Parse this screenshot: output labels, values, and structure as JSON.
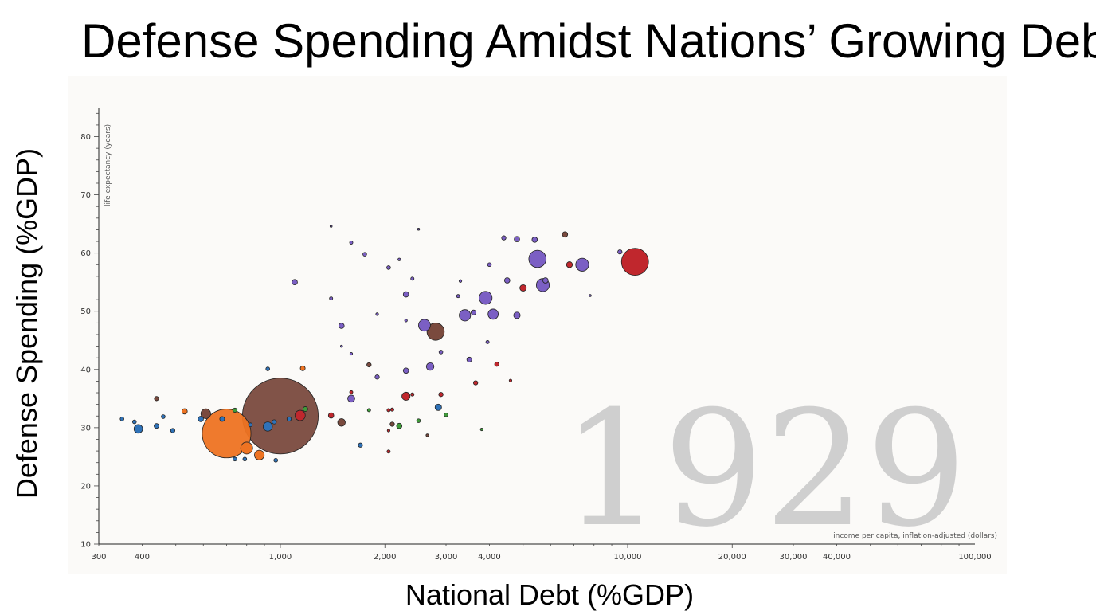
{
  "slide": {
    "title": "Defense Spending Amidst Nations’ Growing Debt",
    "ylabel": "Defense Spending (%GDP)",
    "xlabel": "National Debt (%GDP)"
  },
  "chart_data": {
    "type": "scatter",
    "year_label": "1929",
    "inner_ylabel": "life expectancy (years)",
    "inner_xlabel": "income per capita, inflation-adjusted (dollars)",
    "x_scale": "log",
    "xlim": [
      300,
      100000
    ],
    "ylim": [
      10,
      85
    ],
    "x_ticks": [
      {
        "value": 300,
        "label": "300"
      },
      {
        "value": 400,
        "label": "400"
      },
      {
        "value": 1000,
        "label": "1,000"
      },
      {
        "value": 2000,
        "label": "2,000"
      },
      {
        "value": 3000,
        "label": "3,000"
      },
      {
        "value": 4000,
        "label": "4,000"
      },
      {
        "value": 10000,
        "label": "10,000"
      },
      {
        "value": 20000,
        "label": "20,000"
      },
      {
        "value": 30000,
        "label": "30,000"
      },
      {
        "value": 40000,
        "label": "40,000"
      },
      {
        "value": 100000,
        "label": "100,000"
      }
    ],
    "y_ticks": [
      10,
      20,
      30,
      40,
      50,
      60,
      70,
      80
    ],
    "colors": {
      "purple": "#7b5fc4",
      "red": "#c0272d",
      "brown": "#7a4a3e",
      "orange": "#ee7322",
      "blue": "#2f72b8",
      "green": "#3f9a3a"
    },
    "points": [
      {
        "x": 1000,
        "y": 32,
        "size": 14,
        "color": "brown"
      },
      {
        "x": 700,
        "y": 29,
        "size": 9,
        "color": "orange"
      },
      {
        "x": 10500,
        "y": 58.5,
        "size": 5,
        "color": "red"
      },
      {
        "x": 5500,
        "y": 59,
        "size": 3.2,
        "color": "purple"
      },
      {
        "x": 7400,
        "y": 58,
        "size": 2.4,
        "color": "purple"
      },
      {
        "x": 5700,
        "y": 54.5,
        "size": 2.4,
        "color": "purple"
      },
      {
        "x": 3900,
        "y": 52.3,
        "size": 2.4,
        "color": "purple"
      },
      {
        "x": 2600,
        "y": 47.6,
        "size": 2.2,
        "color": "purple"
      },
      {
        "x": 2800,
        "y": 46.5,
        "size": 3.2,
        "color": "brown"
      },
      {
        "x": 3400,
        "y": 49.3,
        "size": 2.1,
        "color": "purple"
      },
      {
        "x": 4100,
        "y": 49.5,
        "size": 1.9,
        "color": "purple"
      },
      {
        "x": 800,
        "y": 26.5,
        "size": 2.2,
        "color": "orange"
      },
      {
        "x": 870,
        "y": 25.3,
        "size": 1.8,
        "color": "orange"
      },
      {
        "x": 390,
        "y": 29.8,
        "size": 1.6,
        "color": "blue"
      },
      {
        "x": 920,
        "y": 30.2,
        "size": 1.7,
        "color": "blue"
      },
      {
        "x": 610,
        "y": 32.4,
        "size": 1.8,
        "color": "brown"
      },
      {
        "x": 1140,
        "y": 32.1,
        "size": 1.9,
        "color": "red"
      },
      {
        "x": 4800,
        "y": 49.3,
        "size": 1.2,
        "color": "purple"
      },
      {
        "x": 2700,
        "y": 40.5,
        "size": 1.4,
        "color": "purple"
      },
      {
        "x": 2300,
        "y": 35.4,
        "size": 1.5,
        "color": "red"
      },
      {
        "x": 1600,
        "y": 35.0,
        "size": 1.3,
        "color": "purple"
      },
      {
        "x": 1500,
        "y": 30.9,
        "size": 1.4,
        "color": "brown"
      },
      {
        "x": 2850,
        "y": 33.5,
        "size": 1.2,
        "color": "blue"
      },
      {
        "x": 6600,
        "y": 63.2,
        "size": 1.0,
        "color": "brown"
      },
      {
        "x": 5400,
        "y": 62.3,
        "size": 1.0,
        "color": "purple"
      },
      {
        "x": 4800,
        "y": 62.4,
        "size": 1.0,
        "color": "purple"
      },
      {
        "x": 4400,
        "y": 62.6,
        "size": 0.8,
        "color": "purple"
      },
      {
        "x": 6800,
        "y": 58.0,
        "size": 1.1,
        "color": "red"
      },
      {
        "x": 5000,
        "y": 54.0,
        "size": 1.2,
        "color": "red"
      },
      {
        "x": 4500,
        "y": 55.3,
        "size": 1.0,
        "color": "purple"
      },
      {
        "x": 5800,
        "y": 55.3,
        "size": 1.0,
        "color": "purple"
      },
      {
        "x": 9500,
        "y": 60.2,
        "size": 0.8,
        "color": "purple"
      },
      {
        "x": 1100,
        "y": 55.0,
        "size": 1.0,
        "color": "purple"
      },
      {
        "x": 2300,
        "y": 52.9,
        "size": 1.0,
        "color": "purple"
      },
      {
        "x": 3600,
        "y": 49.8,
        "size": 0.9,
        "color": "purple"
      },
      {
        "x": 1500,
        "y": 47.5,
        "size": 1.0,
        "color": "purple"
      },
      {
        "x": 1750,
        "y": 59.8,
        "size": 0.7,
        "color": "purple"
      },
      {
        "x": 2050,
        "y": 57.5,
        "size": 0.7,
        "color": "purple"
      },
      {
        "x": 4000,
        "y": 58.0,
        "size": 0.7,
        "color": "purple"
      },
      {
        "x": 3250,
        "y": 52.6,
        "size": 0.6,
        "color": "purple"
      },
      {
        "x": 2900,
        "y": 43.0,
        "size": 0.7,
        "color": "purple"
      },
      {
        "x": 3500,
        "y": 41.7,
        "size": 0.9,
        "color": "purple"
      },
      {
        "x": 2300,
        "y": 39.8,
        "size": 1.0,
        "color": "purple"
      },
      {
        "x": 1900,
        "y": 38.7,
        "size": 0.8,
        "color": "purple"
      },
      {
        "x": 1800,
        "y": 40.8,
        "size": 0.8,
        "color": "brown"
      },
      {
        "x": 4200,
        "y": 40.9,
        "size": 0.8,
        "color": "red"
      },
      {
        "x": 3650,
        "y": 37.7,
        "size": 0.8,
        "color": "red"
      },
      {
        "x": 2900,
        "y": 35.7,
        "size": 0.8,
        "color": "red"
      },
      {
        "x": 1400,
        "y": 32.1,
        "size": 1.0,
        "color": "red"
      },
      {
        "x": 2100,
        "y": 30.6,
        "size": 0.8,
        "color": "brown"
      },
      {
        "x": 2200,
        "y": 30.3,
        "size": 1.0,
        "color": "green"
      },
      {
        "x": 2500,
        "y": 31.2,
        "size": 0.7,
        "color": "green"
      },
      {
        "x": 3000,
        "y": 32.2,
        "size": 0.7,
        "color": "green"
      },
      {
        "x": 1180,
        "y": 33.2,
        "size": 0.9,
        "color": "green"
      },
      {
        "x": 1160,
        "y": 40.2,
        "size": 0.9,
        "color": "orange"
      },
      {
        "x": 530,
        "y": 32.8,
        "size": 1.0,
        "color": "orange"
      },
      {
        "x": 740,
        "y": 33.0,
        "size": 0.8,
        "color": "green"
      },
      {
        "x": 440,
        "y": 35.0,
        "size": 0.8,
        "color": "brown"
      },
      {
        "x": 440,
        "y": 30.3,
        "size": 0.9,
        "color": "blue"
      },
      {
        "x": 680,
        "y": 31.5,
        "size": 0.9,
        "color": "blue"
      },
      {
        "x": 350,
        "y": 31.5,
        "size": 0.7,
        "color": "blue"
      },
      {
        "x": 380,
        "y": 31.0,
        "size": 0.7,
        "color": "blue"
      },
      {
        "x": 490,
        "y": 29.5,
        "size": 0.8,
        "color": "blue"
      },
      {
        "x": 460,
        "y": 31.9,
        "size": 0.7,
        "color": "blue"
      },
      {
        "x": 590,
        "y": 31.5,
        "size": 1.0,
        "color": "blue"
      },
      {
        "x": 960,
        "y": 31.0,
        "size": 0.8,
        "color": "blue"
      },
      {
        "x": 1060,
        "y": 31.5,
        "size": 0.8,
        "color": "blue"
      },
      {
        "x": 820,
        "y": 30.5,
        "size": 0.7,
        "color": "blue"
      },
      {
        "x": 740,
        "y": 24.6,
        "size": 0.7,
        "color": "blue"
      },
      {
        "x": 790,
        "y": 24.6,
        "size": 0.7,
        "color": "blue"
      },
      {
        "x": 970,
        "y": 24.4,
        "size": 0.7,
        "color": "blue"
      },
      {
        "x": 1700,
        "y": 27.0,
        "size": 0.8,
        "color": "blue"
      },
      {
        "x": 2050,
        "y": 25.9,
        "size": 0.6,
        "color": "red"
      },
      {
        "x": 2050,
        "y": 33.0,
        "size": 0.6,
        "color": "red"
      },
      {
        "x": 1800,
        "y": 33.0,
        "size": 0.6,
        "color": "green"
      },
      {
        "x": 3800,
        "y": 29.7,
        "size": 0.5,
        "color": "green"
      },
      {
        "x": 920,
        "y": 40.1,
        "size": 0.7,
        "color": "blue"
      },
      {
        "x": 1600,
        "y": 36.1,
        "size": 0.6,
        "color": "red"
      },
      {
        "x": 4600,
        "y": 38.1,
        "size": 0.5,
        "color": "red"
      },
      {
        "x": 1900,
        "y": 49.5,
        "size": 0.5,
        "color": "purple"
      },
      {
        "x": 1600,
        "y": 61.8,
        "size": 0.6,
        "color": "purple"
      },
      {
        "x": 2200,
        "y": 58.9,
        "size": 0.5,
        "color": "purple"
      },
      {
        "x": 3300,
        "y": 55.2,
        "size": 0.5,
        "color": "purple"
      },
      {
        "x": 1400,
        "y": 52.2,
        "size": 0.6,
        "color": "purple"
      },
      {
        "x": 1400,
        "y": 64.6,
        "size": 0.4,
        "color": "purple"
      },
      {
        "x": 2500,
        "y": 64.1,
        "size": 0.4,
        "color": "purple"
      },
      {
        "x": 2400,
        "y": 55.6,
        "size": 0.6,
        "color": "purple"
      },
      {
        "x": 3950,
        "y": 44.7,
        "size": 0.6,
        "color": "purple"
      },
      {
        "x": 2300,
        "y": 48.4,
        "size": 0.5,
        "color": "purple"
      },
      {
        "x": 7800,
        "y": 52.7,
        "size": 0.4,
        "color": "purple"
      },
      {
        "x": 1500,
        "y": 44.0,
        "size": 0.4,
        "color": "purple"
      },
      {
        "x": 1600,
        "y": 42.7,
        "size": 0.5,
        "color": "purple"
      },
      {
        "x": 2400,
        "y": 35.7,
        "size": 0.6,
        "color": "red"
      },
      {
        "x": 2100,
        "y": 33.1,
        "size": 0.6,
        "color": "red"
      },
      {
        "x": 2650,
        "y": 28.7,
        "size": 0.5,
        "color": "brown"
      },
      {
        "x": 2050,
        "y": 29.5,
        "size": 0.5,
        "color": "red"
      }
    ]
  }
}
